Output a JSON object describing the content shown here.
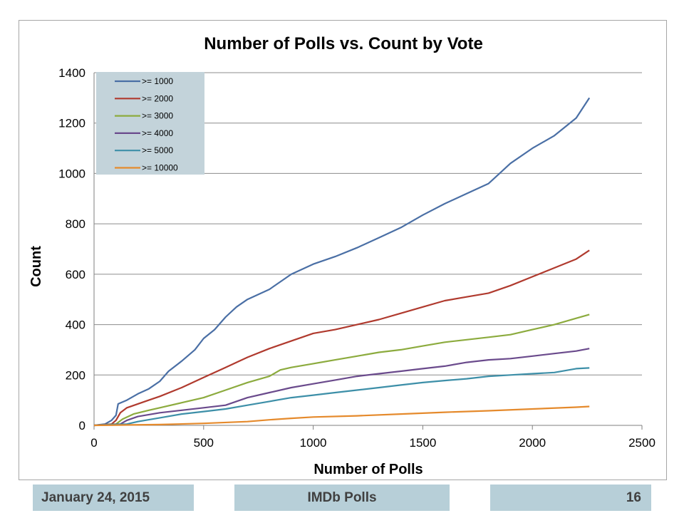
{
  "footer": {
    "date": "January 24, 2015",
    "title": "IMDb Polls",
    "page_number": "16"
  },
  "chart_data": {
    "type": "line",
    "title": "Number of Polls vs. Count by Vote",
    "xlabel": "Number of Polls",
    "ylabel": "Count",
    "xlim": [
      0,
      2500
    ],
    "ylim": [
      0,
      1400
    ],
    "x_ticks": [
      0,
      500,
      1000,
      1500,
      2000,
      2500
    ],
    "y_ticks": [
      0,
      200,
      400,
      600,
      800,
      1000,
      1200,
      1400
    ],
    "grid": "horizontal",
    "legend_position": "top-left",
    "series": [
      {
        "name": ">= 1000",
        "color": "#4a6fa5",
        "points": [
          [
            0,
            0
          ],
          [
            50,
            5
          ],
          [
            80,
            20
          ],
          [
            100,
            40
          ],
          [
            110,
            85
          ],
          [
            150,
            100
          ],
          [
            200,
            125
          ],
          [
            250,
            145
          ],
          [
            300,
            175
          ],
          [
            340,
            215
          ],
          [
            400,
            255
          ],
          [
            460,
            300
          ],
          [
            500,
            345
          ],
          [
            550,
            380
          ],
          [
            600,
            430
          ],
          [
            650,
            470
          ],
          [
            700,
            500
          ],
          [
            800,
            540
          ],
          [
            900,
            600
          ],
          [
            1000,
            640
          ],
          [
            1100,
            670
          ],
          [
            1200,
            705
          ],
          [
            1300,
            745
          ],
          [
            1400,
            785
          ],
          [
            1500,
            835
          ],
          [
            1600,
            880
          ],
          [
            1700,
            920
          ],
          [
            1800,
            960
          ],
          [
            1850,
            1000
          ],
          [
            1900,
            1040
          ],
          [
            2000,
            1100
          ],
          [
            2100,
            1150
          ],
          [
            2200,
            1220
          ],
          [
            2260,
            1300
          ]
        ]
      },
      {
        "name": ">= 2000",
        "color": "#b03a2e",
        "points": [
          [
            0,
            0
          ],
          [
            80,
            5
          ],
          [
            100,
            20
          ],
          [
            120,
            50
          ],
          [
            150,
            70
          ],
          [
            200,
            85
          ],
          [
            250,
            100
          ],
          [
            300,
            115
          ],
          [
            400,
            150
          ],
          [
            500,
            190
          ],
          [
            600,
            230
          ],
          [
            700,
            270
          ],
          [
            800,
            305
          ],
          [
            900,
            335
          ],
          [
            1000,
            365
          ],
          [
            1100,
            380
          ],
          [
            1200,
            400
          ],
          [
            1300,
            420
          ],
          [
            1400,
            445
          ],
          [
            1500,
            470
          ],
          [
            1600,
            495
          ],
          [
            1700,
            510
          ],
          [
            1800,
            525
          ],
          [
            1900,
            555
          ],
          [
            2000,
            590
          ],
          [
            2100,
            625
          ],
          [
            2200,
            660
          ],
          [
            2260,
            695
          ]
        ]
      },
      {
        "name": ">= 3000",
        "color": "#8cab3e",
        "points": [
          [
            0,
            0
          ],
          [
            100,
            5
          ],
          [
            130,
            25
          ],
          [
            180,
            45
          ],
          [
            250,
            60
          ],
          [
            300,
            70
          ],
          [
            400,
            90
          ],
          [
            500,
            110
          ],
          [
            600,
            140
          ],
          [
            700,
            170
          ],
          [
            800,
            195
          ],
          [
            850,
            220
          ],
          [
            900,
            230
          ],
          [
            1000,
            245
          ],
          [
            1100,
            260
          ],
          [
            1200,
            275
          ],
          [
            1300,
            290
          ],
          [
            1400,
            300
          ],
          [
            1500,
            315
          ],
          [
            1600,
            330
          ],
          [
            1700,
            340
          ],
          [
            1800,
            350
          ],
          [
            1900,
            360
          ],
          [
            2000,
            380
          ],
          [
            2100,
            400
          ],
          [
            2200,
            425
          ],
          [
            2260,
            440
          ]
        ]
      },
      {
        "name": ">= 4000",
        "color": "#6a4a8c",
        "points": [
          [
            0,
            0
          ],
          [
            120,
            5
          ],
          [
            150,
            20
          ],
          [
            200,
            35
          ],
          [
            300,
            50
          ],
          [
            400,
            60
          ],
          [
            500,
            70
          ],
          [
            600,
            80
          ],
          [
            700,
            110
          ],
          [
            800,
            130
          ],
          [
            900,
            150
          ],
          [
            1000,
            165
          ],
          [
            1100,
            180
          ],
          [
            1200,
            195
          ],
          [
            1300,
            205
          ],
          [
            1400,
            215
          ],
          [
            1500,
            225
          ],
          [
            1600,
            235
          ],
          [
            1700,
            250
          ],
          [
            1800,
            260
          ],
          [
            1900,
            265
          ],
          [
            2000,
            275
          ],
          [
            2100,
            285
          ],
          [
            2200,
            295
          ],
          [
            2260,
            305
          ]
        ]
      },
      {
        "name": ">= 5000",
        "color": "#3d8fa8",
        "points": [
          [
            0,
            0
          ],
          [
            150,
            5
          ],
          [
            200,
            15
          ],
          [
            300,
            30
          ],
          [
            400,
            45
          ],
          [
            500,
            55
          ],
          [
            600,
            65
          ],
          [
            700,
            80
          ],
          [
            800,
            95
          ],
          [
            900,
            110
          ],
          [
            1000,
            120
          ],
          [
            1100,
            130
          ],
          [
            1200,
            140
          ],
          [
            1300,
            150
          ],
          [
            1400,
            160
          ],
          [
            1500,
            170
          ],
          [
            1600,
            178
          ],
          [
            1700,
            185
          ],
          [
            1800,
            195
          ],
          [
            1900,
            200
          ],
          [
            2000,
            205
          ],
          [
            2100,
            210
          ],
          [
            2200,
            225
          ],
          [
            2260,
            228
          ]
        ]
      },
      {
        "name": ">= 10000",
        "color": "#e58a2c",
        "points": [
          [
            0,
            0
          ],
          [
            300,
            3
          ],
          [
            500,
            8
          ],
          [
            700,
            15
          ],
          [
            800,
            22
          ],
          [
            900,
            28
          ],
          [
            1000,
            33
          ],
          [
            1200,
            38
          ],
          [
            1400,
            45
          ],
          [
            1600,
            52
          ],
          [
            1800,
            58
          ],
          [
            2000,
            65
          ],
          [
            2200,
            72
          ],
          [
            2260,
            75
          ]
        ]
      }
    ]
  }
}
